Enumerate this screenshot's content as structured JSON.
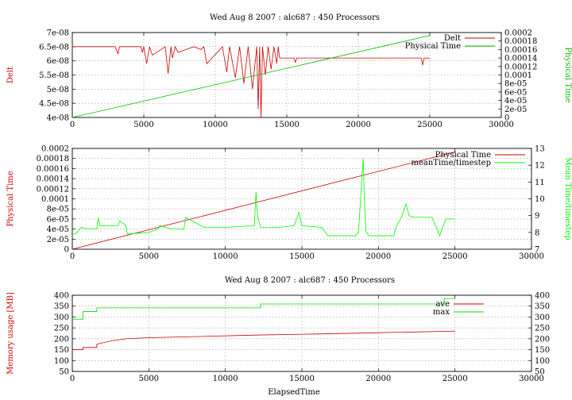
{
  "chart_data": [
    {
      "type": "line",
      "title": "Wed Aug 8 2007 : alc687 : 450 Processors",
      "xlabel": "",
      "ylabel": "Delt",
      "y2label": "Physical Time",
      "xlim": [
        0,
        30000
      ],
      "ylim": [
        4e-08,
        7e-08
      ],
      "y2lim": [
        0,
        0.0002
      ],
      "xticks": [
        "0",
        "5000",
        "10000",
        "15000",
        "20000",
        "25000",
        "30000"
      ],
      "yticks": [
        "4e-08",
        "4.5e-08",
        "5e-08",
        "5.5e-08",
        "6e-08",
        "6.5e-08",
        "7e-08"
      ],
      "y2ticks": [
        "0",
        "2e-05",
        "4e-05",
        "6e-05",
        "8e-05",
        "0.0001",
        "0.00012",
        "0.00014",
        "0.00016",
        "0.00018",
        "0.0002"
      ],
      "grid": true,
      "legend_position": "top-right",
      "series": [
        {
          "name": "Delt",
          "color": "#cc0000",
          "axis": "y",
          "x": [
            0,
            3000,
            3200,
            3300,
            4800,
            4900,
            5000,
            5200,
            5400,
            5600,
            6500,
            6700,
            6900,
            7000,
            7200,
            7400,
            8500,
            9000,
            9200,
            9400,
            10500,
            10800,
            11000,
            11400,
            11700,
            12000,
            12300,
            12600,
            12900,
            13000,
            13100,
            13200,
            13300,
            13500,
            13700,
            13900,
            14100,
            14300,
            14400,
            14500,
            15500,
            15600,
            15700,
            24400,
            24500,
            24600,
            25000
          ],
          "y": [
            6.5e-08,
            6.5e-08,
            6.25e-08,
            6.5e-08,
            6.5e-08,
            6.3e-08,
            6.5e-08,
            5.9e-08,
            6.5e-08,
            6.2e-08,
            6.5e-08,
            5.55e-08,
            6.5e-08,
            6.1e-08,
            6.5e-08,
            6.3e-08,
            6.5e-08,
            6.4e-08,
            6.5e-08,
            5.9e-08,
            6.5e-08,
            5.6e-08,
            6.5e-08,
            5.4e-08,
            6.5e-08,
            5.2e-08,
            6.5e-08,
            5e-08,
            6.5e-08,
            4.3e-08,
            6.5e-08,
            4e-08,
            6.5e-08,
            5.5e-08,
            6.5e-08,
            5.7e-08,
            6.5e-08,
            5.9e-08,
            6.5e-08,
            6.1e-08,
            6.1e-08,
            5.95e-08,
            6.1e-08,
            6.1e-08,
            5.85e-08,
            6.1e-08,
            6.1e-08
          ]
        },
        {
          "name": "Physical Time",
          "color": "#00bb00",
          "axis": "y2",
          "x": [
            0,
            25000
          ],
          "y": [
            0,
            0.000193
          ]
        }
      ]
    },
    {
      "type": "line",
      "title": "",
      "xlabel": "",
      "ylabel": "Physical Time",
      "y2label": "Mean Time/timestep",
      "xlim": [
        0,
        30000
      ],
      "ylim": [
        0,
        0.0002
      ],
      "y2lim": [
        7,
        13
      ],
      "xticks": [
        "0",
        "5000",
        "10000",
        "15000",
        "20000",
        "25000",
        "30000"
      ],
      "yticks": [
        "0",
        "2e-05",
        "4e-05",
        "6e-05",
        "8e-05",
        "0.0001",
        "0.00012",
        "0.00014",
        "0.00016",
        "0.00018",
        "0.0002"
      ],
      "y2ticks": [
        "7",
        "8",
        "9",
        "10",
        "11",
        "12",
        "13"
      ],
      "grid": true,
      "legend_position": "top-right",
      "series": [
        {
          "name": "Physical Time",
          "color": "#cc0000",
          "axis": "y",
          "x": [
            0,
            25000
          ],
          "y": [
            0,
            0.000193
          ]
        },
        {
          "name": "meanTime/timestep",
          "color": "#00ff00",
          "axis": "y2",
          "x": [
            0,
            200,
            600,
            1000,
            1600,
            1700,
            1800,
            3000,
            3100,
            3500,
            3600,
            5000,
            5600,
            5700,
            6500,
            7300,
            7400,
            8600,
            10000,
            11900,
            12000,
            12100,
            12300,
            13500,
            14500,
            14800,
            15000,
            16300,
            16700,
            18500,
            18700,
            18900,
            19000,
            19100,
            19200,
            19400,
            20000,
            21000,
            21200,
            21500,
            21800,
            22000,
            22300,
            23500,
            24000,
            24400,
            25000
          ],
          "y": [
            7.9,
            7.9,
            8.3,
            8.2,
            8.2,
            8.9,
            8.4,
            8.4,
            8.7,
            8.4,
            7.9,
            8.0,
            8.2,
            8.4,
            8.2,
            8.2,
            8.9,
            8.3,
            8.3,
            8.4,
            10.4,
            9.0,
            8.3,
            8.3,
            8.4,
            9.2,
            8.4,
            8.3,
            7.8,
            7.8,
            8.0,
            11.0,
            12.4,
            9.5,
            8.0,
            7.8,
            7.8,
            7.8,
            8.4,
            8.9,
            9.7,
            9.0,
            8.9,
            8.9,
            7.8,
            8.8,
            8.8
          ]
        }
      ]
    },
    {
      "type": "line",
      "title": "Wed Aug 8 2007 : alc687 : 450 Processors",
      "xlabel": "ElapsedTime",
      "ylabel": "Memory usage [MB]",
      "y2label": "",
      "xlim": [
        0,
        30000
      ],
      "ylim": [
        50,
        400
      ],
      "y2lim": [
        50,
        400
      ],
      "xticks": [
        "0",
        "5000",
        "10000",
        "15000",
        "20000",
        "25000",
        "30000"
      ],
      "yticks": [
        "50",
        "100",
        "150",
        "200",
        "250",
        "300",
        "350",
        "400"
      ],
      "y2ticks": [
        "50",
        "100",
        "150",
        "200",
        "250",
        "300",
        "350",
        "400"
      ],
      "grid": true,
      "legend_position": "top-right",
      "series": [
        {
          "name": "ave",
          "color": "#cc0000",
          "axis": "y",
          "x": [
            0,
            700,
            700,
            1600,
            1600,
            2500,
            3500,
            5000,
            8000,
            12000,
            16000,
            20000,
            25000
          ],
          "y": [
            150,
            150,
            160,
            160,
            175,
            190,
            200,
            205,
            210,
            217,
            222,
            228,
            235
          ]
        },
        {
          "name": "max",
          "color": "#00dd00",
          "axis": "y",
          "x": [
            0,
            700,
            700,
            1600,
            1600,
            12300,
            12300,
            24300,
            24300,
            25000
          ],
          "y": [
            290,
            290,
            325,
            325,
            342,
            342,
            360,
            360,
            385,
            385
          ]
        }
      ]
    }
  ]
}
